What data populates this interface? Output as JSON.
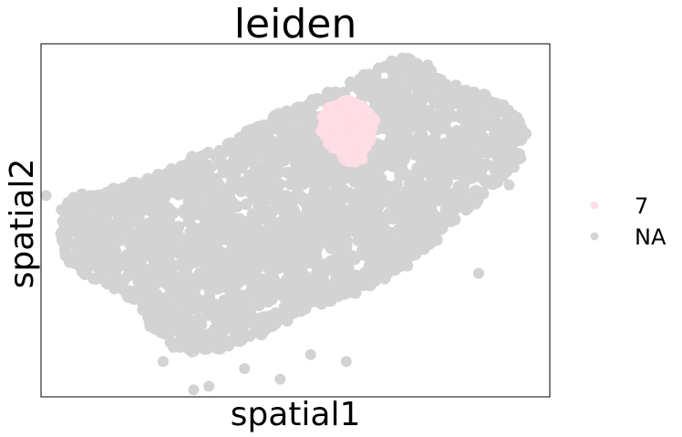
{
  "chart_data": {
    "type": "scatter",
    "title": "leiden",
    "xlabel": "spatial1",
    "ylabel": "spatial2",
    "xticks": [],
    "yticks": [],
    "grid": false,
    "legend_position": "right",
    "series": [
      {
        "name": "NA",
        "color": "#d3d3d3",
        "region": {
          "outline": [
            [
              0.05,
              0.56
            ],
            [
              0.1,
              0.57
            ],
            [
              0.18,
              0.6
            ],
            [
              0.28,
              0.66
            ],
            [
              0.37,
              0.72
            ],
            [
              0.44,
              0.78
            ],
            [
              0.49,
              0.81
            ],
            [
              0.54,
              0.84
            ],
            [
              0.6,
              0.88
            ],
            [
              0.66,
              0.93
            ],
            [
              0.72,
              0.96
            ],
            [
              0.76,
              0.92
            ],
            [
              0.8,
              0.88
            ],
            [
              0.86,
              0.86
            ],
            [
              0.91,
              0.82
            ],
            [
              0.95,
              0.76
            ],
            [
              0.94,
              0.68
            ],
            [
              0.9,
              0.62
            ],
            [
              0.86,
              0.56
            ],
            [
              0.8,
              0.48
            ],
            [
              0.74,
              0.4
            ],
            [
              0.66,
              0.33
            ],
            [
              0.58,
              0.28
            ],
            [
              0.5,
              0.23
            ],
            [
              0.43,
              0.18
            ],
            [
              0.36,
              0.14
            ],
            [
              0.3,
              0.13
            ],
            [
              0.26,
              0.16
            ],
            [
              0.22,
              0.2
            ],
            [
              0.2,
              0.26
            ],
            [
              0.16,
              0.3
            ],
            [
              0.1,
              0.34
            ],
            [
              0.06,
              0.38
            ],
            [
              0.04,
              0.44
            ],
            [
              0.05,
              0.5
            ]
          ],
          "notch": [
            [
              0.55,
              0.84
            ],
            [
              0.65,
              0.84
            ],
            [
              0.64,
              0.76
            ],
            [
              0.56,
              0.75
            ]
          ],
          "outliers": [
            [
              0.01,
              0.57
            ],
            [
              0.04,
              0.53
            ],
            [
              0.12,
              0.49
            ],
            [
              0.13,
              0.55
            ],
            [
              0.37,
              0.65
            ],
            [
              0.93,
              0.65
            ],
            [
              0.89,
              0.74
            ],
            [
              0.85,
              0.79
            ],
            [
              0.71,
              0.96
            ],
            [
              0.76,
              0.94
            ],
            [
              0.84,
              0.83
            ],
            [
              0.53,
              0.12
            ],
            [
              0.6,
              0.1
            ],
            [
              0.7,
              0.37
            ],
            [
              0.68,
              0.43
            ],
            [
              0.4,
              0.08
            ],
            [
              0.47,
              0.05
            ],
            [
              0.26,
              0.14
            ],
            [
              0.24,
              0.1
            ],
            [
              0.33,
              0.03
            ],
            [
              0.3,
              0.02
            ],
            [
              0.18,
              0.28
            ],
            [
              0.86,
              0.35
            ],
            [
              0.92,
              0.6
            ]
          ]
        }
      },
      {
        "name": "7",
        "color": "#ffdde4",
        "region": {
          "outline": [
            [
              0.56,
              0.82
            ],
            [
              0.6,
              0.84
            ],
            [
              0.63,
              0.83
            ],
            [
              0.66,
              0.79
            ],
            [
              0.65,
              0.73
            ],
            [
              0.63,
              0.67
            ],
            [
              0.61,
              0.66
            ],
            [
              0.59,
              0.68
            ],
            [
              0.57,
              0.71
            ],
            [
              0.55,
              0.74
            ],
            [
              0.55,
              0.78
            ]
          ]
        }
      }
    ]
  }
}
